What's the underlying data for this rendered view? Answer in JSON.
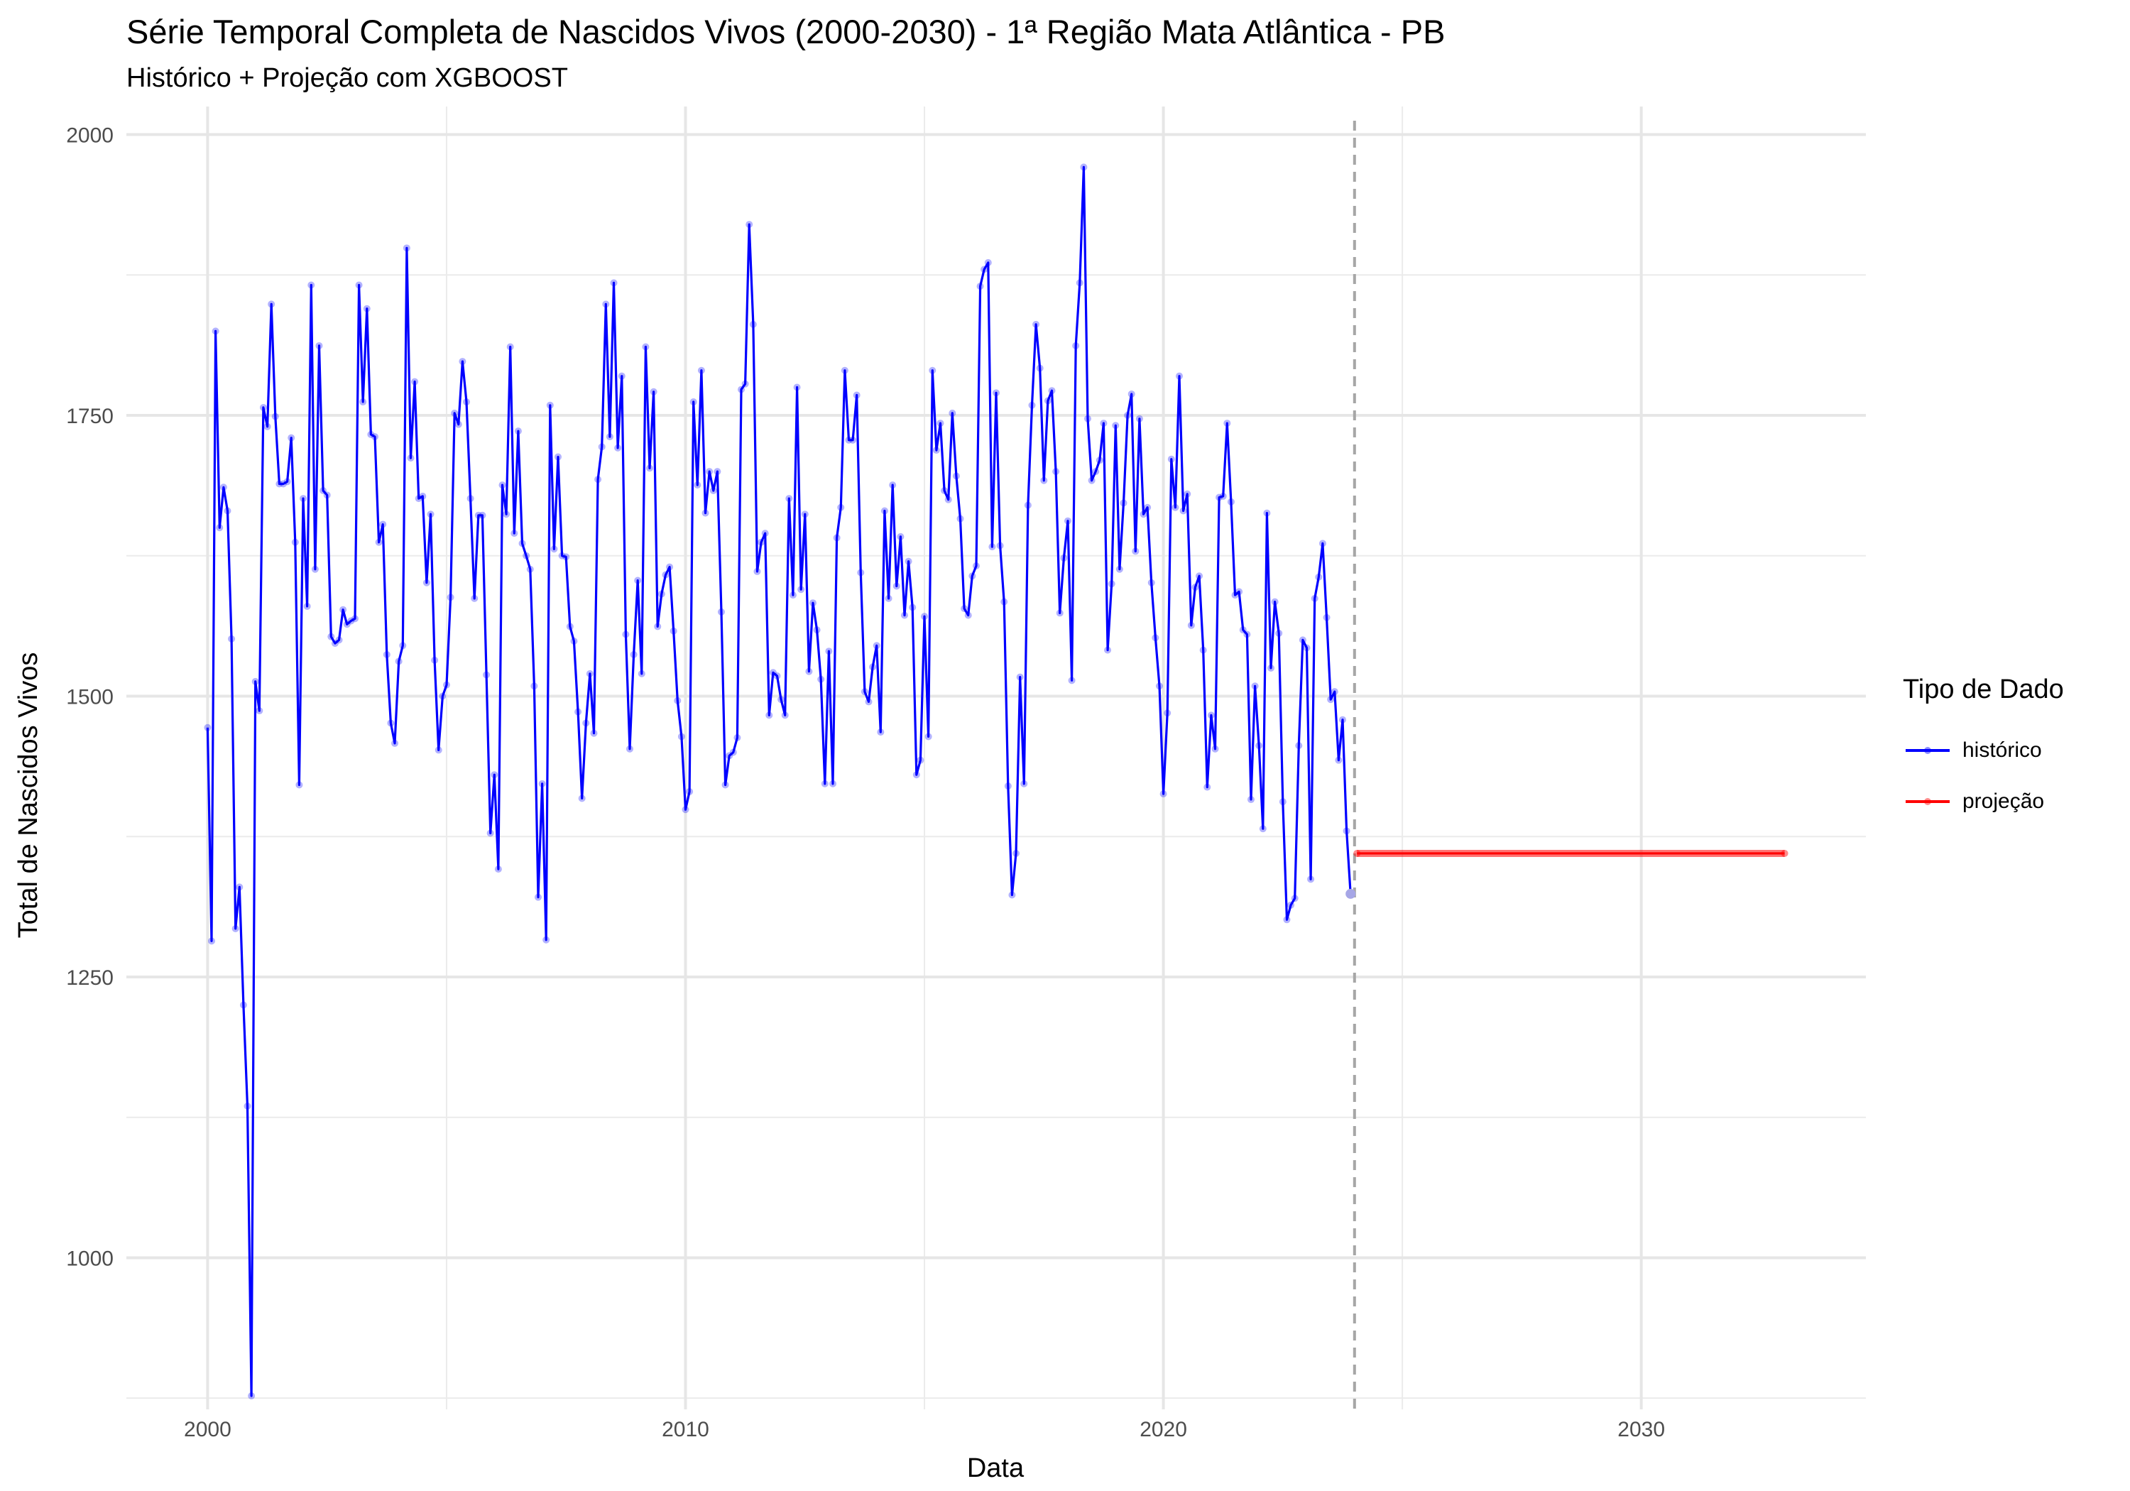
{
  "chart_data": {
    "type": "line",
    "title": "Série Temporal Completa de Nascidos Vivos (2000-2030) -  1ª Região Mata Atlântica - PB",
    "subtitle": "Histórico + Projeção com XGBOOST",
    "xlabel": "Data",
    "ylabel": "Total de Nascidos Vivos",
    "xlim": [
      1998.3,
      2034.7
    ],
    "ylim": [
      865,
      2025
    ],
    "x_ticks": [
      2000,
      2010,
      2020,
      2030
    ],
    "y_ticks": [
      1000,
      1250,
      1500,
      1750,
      2000
    ],
    "grid": true,
    "vline_x": 2024.0,
    "legend": {
      "title": "Tipo de Dado",
      "position": "right",
      "entries": [
        {
          "label": "histórico",
          "color": "#0000ff"
        },
        {
          "label": "projeção",
          "color": "#ff0000"
        }
      ]
    },
    "series": [
      {
        "name": "histórico",
        "color": "#0000ff",
        "start_year": 2000,
        "step": "monthly",
        "values": [
          1472,
          1282,
          1825,
          1650,
          1686,
          1665,
          1551,
          1293,
          1330,
          1225,
          1135,
          877,
          1513,
          1487,
          1757,
          1740,
          1849,
          1749,
          1689,
          1689,
          1691,
          1730,
          1637,
          1421,
          1676,
          1580,
          1866,
          1613,
          1812,
          1683,
          1679,
          1553,
          1547,
          1550,
          1577,
          1564,
          1567,
          1569,
          1866,
          1762,
          1845,
          1733,
          1731,
          1637,
          1653,
          1537,
          1476,
          1458,
          1531,
          1545,
          1899,
          1712,
          1780,
          1676,
          1678,
          1601,
          1662,
          1532,
          1452,
          1500,
          1510,
          1588,
          1752,
          1742,
          1798,
          1762,
          1676,
          1587,
          1661,
          1661,
          1519,
          1378,
          1430,
          1346,
          1688,
          1662,
          1811,
          1645,
          1736,
          1636,
          1625,
          1613,
          1509,
          1321,
          1422,
          1283,
          1759,
          1631,
          1713,
          1625,
          1624,
          1562,
          1549,
          1486,
          1409,
          1476,
          1520,
          1467,
          1693,
          1722,
          1849,
          1731,
          1868,
          1721,
          1785,
          1555,
          1453,
          1537,
          1603,
          1520,
          1811,
          1703,
          1771,
          1562,
          1591,
          1608,
          1615,
          1558,
          1496,
          1464,
          1399,
          1415,
          1762,
          1688,
          1790,
          1663,
          1700,
          1683,
          1700,
          1575,
          1421,
          1447,
          1450,
          1463,
          1773,
          1778,
          1920,
          1831,
          1611,
          1637,
          1645,
          1483,
          1521,
          1518,
          1497,
          1483,
          1676,
          1590,
          1775,
          1595,
          1662,
          1522,
          1583,
          1559,
          1515,
          1422,
          1540,
          1422,
          1641,
          1668,
          1790,
          1728,
          1728,
          1768,
          1610,
          1504,
          1495,
          1526,
          1545,
          1468,
          1665,
          1587,
          1688,
          1598,
          1642,
          1572,
          1620,
          1579,
          1430,
          1443,
          1571,
          1464,
          1790,
          1719,
          1743,
          1683,
          1675,
          1752,
          1696,
          1658,
          1578,
          1572,
          1607,
          1616,
          1865,
          1880,
          1886,
          1633,
          1770,
          1634,
          1584,
          1420,
          1323,
          1360,
          1517,
          1422,
          1670,
          1759,
          1831,
          1792,
          1692,
          1763,
          1772,
          1700,
          1574,
          1623,
          1656,
          1514,
          1812,
          1868,
          1971,
          1747,
          1692,
          1700,
          1710,
          1743,
          1541,
          1600,
          1741,
          1613,
          1672,
          1750,
          1769,
          1629,
          1747,
          1662,
          1668,
          1601,
          1552,
          1509,
          1413,
          1485,
          1711,
          1668,
          1785,
          1665,
          1680,
          1563,
          1597,
          1607,
          1541,
          1419,
          1483,
          1453,
          1677,
          1678,
          1743,
          1673,
          1590,
          1593,
          1559,
          1555,
          1408,
          1509,
          1456,
          1382,
          1663,
          1525,
          1584,
          1556,
          1406,
          1301,
          1314,
          1320,
          1456,
          1550,
          1543,
          1337,
          1587,
          1606,
          1636,
          1570,
          1497,
          1504,
          1443,
          1479,
          1380,
          1324
        ]
      },
      {
        "name": "projeção",
        "color": "#ff0000",
        "x": [
          2024.05,
          2033.0
        ],
        "values": [
          1360,
          1360
        ]
      }
    ]
  }
}
